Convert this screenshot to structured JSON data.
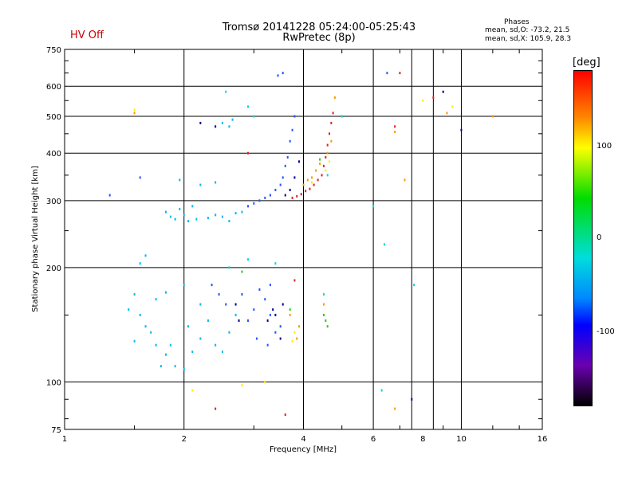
{
  "status": {
    "hv": "HV Off"
  },
  "header": {
    "title": "Tromsø 20141228 05:24:00-05:25:43",
    "subtitle": "RwPretec (8p)"
  },
  "phase_stats": {
    "label": "Phases",
    "o_line": "mean, sd,O: -73.2, 21.5",
    "x_line": "mean, sd,X: 105.9, 28.3"
  },
  "colorbar": {
    "unit": "[deg]",
    "ticks": [
      "100",
      "0",
      "-100"
    ],
    "colors": [
      "#ff0000",
      "#ff8800",
      "#ffff00",
      "#00dd00",
      "#00dddd",
      "#0088ff",
      "#0000ff",
      "#6a00b0",
      "#000000"
    ]
  },
  "chart_data": {
    "type": "scatter",
    "title": "Tromsø 20141228 05:24:00-05:25:43",
    "subtitle": "RwPretec (8p)",
    "xlabel": "Frequency [MHz]",
    "ylabel": "Stationary phase Virtual Height [km]",
    "xscale": "log",
    "yscale": "log",
    "xlim": [
      1,
      16
    ],
    "ylim": [
      75,
      750
    ],
    "xticks": [
      "1",
      "2",
      "4",
      "6",
      "8",
      "10",
      "16"
    ],
    "yticks": [
      "75",
      "100",
      "200",
      "300",
      "400",
      "500",
      "600",
      "750"
    ],
    "xgrid": [
      2,
      4,
      6,
      7.5,
      8.5,
      10
    ],
    "ygrid": [
      100,
      200,
      300,
      400,
      500,
      600
    ],
    "colorscale": "phase (deg)",
    "series": [
      {
        "color": "#00bbee",
        "points": [
          [
            1.8,
            280
          ],
          [
            1.85,
            272
          ],
          [
            1.9,
            268
          ],
          [
            1.95,
            285
          ],
          [
            2.0,
            275
          ],
          [
            2.05,
            265
          ],
          [
            2.1,
            290
          ],
          [
            2.15,
            268
          ],
          [
            2.3,
            270
          ],
          [
            2.4,
            275
          ],
          [
            2.5,
            272
          ],
          [
            2.6,
            265
          ],
          [
            2.7,
            278
          ],
          [
            2.8,
            280
          ],
          [
            1.55,
            205
          ],
          [
            1.6,
            215
          ],
          [
            1.5,
            170
          ],
          [
            1.55,
            150
          ],
          [
            1.6,
            140
          ],
          [
            1.65,
            135
          ],
          [
            1.7,
            125
          ],
          [
            1.8,
            118
          ],
          [
            1.9,
            110
          ],
          [
            2.0,
            108
          ],
          [
            2.1,
            120
          ],
          [
            2.2,
            130
          ],
          [
            2.3,
            145
          ],
          [
            2.4,
            125
          ],
          [
            2.5,
            120
          ],
          [
            2.6,
            135
          ],
          [
            2.7,
            150
          ],
          [
            1.45,
            155
          ],
          [
            1.5,
            128
          ],
          [
            1.7,
            165
          ],
          [
            1.8,
            172
          ],
          [
            2.0,
            180
          ],
          [
            2.2,
            160
          ],
          [
            2.6,
            470
          ],
          [
            2.65,
            490
          ],
          [
            2.5,
            480
          ],
          [
            1.95,
            340
          ],
          [
            2.2,
            330
          ],
          [
            2.4,
            335
          ],
          [
            1.75,
            110
          ],
          [
            1.85,
            125
          ],
          [
            2.05,
            140
          ]
        ]
      },
      {
        "color": "#2255ff",
        "points": [
          [
            2.9,
            290
          ],
          [
            3.0,
            295
          ],
          [
            3.1,
            300
          ],
          [
            3.2,
            305
          ],
          [
            3.3,
            310
          ],
          [
            3.4,
            320
          ],
          [
            3.5,
            330
          ],
          [
            3.55,
            345
          ],
          [
            3.6,
            370
          ],
          [
            3.65,
            390
          ],
          [
            3.7,
            430
          ],
          [
            3.75,
            460
          ],
          [
            3.8,
            500
          ],
          [
            3.3,
            150
          ],
          [
            3.4,
            135
          ],
          [
            3.5,
            140
          ],
          [
            3.2,
            165
          ],
          [
            3.1,
            175
          ],
          [
            3.3,
            180
          ],
          [
            3.0,
            155
          ],
          [
            2.9,
            145
          ],
          [
            3.45,
            640
          ],
          [
            3.55,
            650
          ],
          [
            1.3,
            310
          ],
          [
            1.55,
            345
          ],
          [
            6.5,
            650
          ],
          [
            2.35,
            180
          ],
          [
            2.45,
            170
          ],
          [
            2.55,
            160
          ],
          [
            2.8,
            170
          ],
          [
            3.05,
            130
          ],
          [
            3.25,
            125
          ]
        ]
      },
      {
        "color": "#000099",
        "points": [
          [
            3.6,
            310
          ],
          [
            3.7,
            320
          ],
          [
            3.8,
            345
          ],
          [
            3.9,
            380
          ],
          [
            3.4,
            150
          ],
          [
            3.55,
            160
          ],
          [
            3.25,
            145
          ],
          [
            2.7,
            160
          ],
          [
            2.75,
            145
          ],
          [
            3.35,
            155
          ],
          [
            3.5,
            130
          ],
          [
            10.0,
            460
          ],
          [
            9.0,
            580
          ],
          [
            7.5,
            90
          ],
          [
            2.2,
            480
          ],
          [
            2.4,
            470
          ]
        ]
      },
      {
        "color": "#dd2222",
        "points": [
          [
            3.75,
            305
          ],
          [
            3.85,
            308
          ],
          [
            3.95,
            312
          ],
          [
            4.05,
            318
          ],
          [
            4.15,
            322
          ],
          [
            4.25,
            330
          ],
          [
            4.35,
            340
          ],
          [
            4.45,
            350
          ],
          [
            4.5,
            370
          ],
          [
            4.55,
            390
          ],
          [
            4.6,
            420
          ],
          [
            4.65,
            450
          ],
          [
            4.7,
            480
          ],
          [
            4.75,
            510
          ],
          [
            2.9,
            400
          ],
          [
            2.4,
            85
          ],
          [
            3.6,
            82
          ],
          [
            6.8,
            470
          ],
          [
            8.5,
            560
          ],
          [
            3.8,
            185
          ],
          [
            7.0,
            650
          ]
        ]
      },
      {
        "color": "#ff9900",
        "points": [
          [
            4.0,
            330
          ],
          [
            4.1,
            340
          ],
          [
            4.2,
            345
          ],
          [
            4.3,
            360
          ],
          [
            4.4,
            375
          ],
          [
            4.6,
            400
          ],
          [
            4.7,
            430
          ],
          [
            4.8,
            560
          ],
          [
            3.9,
            140
          ],
          [
            3.85,
            130
          ],
          [
            3.7,
            150
          ],
          [
            4.5,
            160
          ],
          [
            6.8,
            455
          ],
          [
            6.8,
            85
          ],
          [
            7.2,
            340
          ],
          [
            1.5,
            510
          ],
          [
            9.2,
            510
          ],
          [
            12.0,
            500
          ]
        ]
      },
      {
        "color": "#ffee00",
        "points": [
          [
            4.55,
            360
          ],
          [
            4.65,
            380
          ],
          [
            4.2,
            335
          ],
          [
            3.8,
            135
          ],
          [
            3.75,
            128
          ],
          [
            1.5,
            520
          ],
          [
            8.0,
            550
          ],
          [
            9.5,
            530
          ],
          [
            2.1,
            95
          ],
          [
            2.8,
            98
          ],
          [
            3.2,
            100
          ]
        ]
      },
      {
        "color": "#22cc22",
        "points": [
          [
            4.5,
            150
          ],
          [
            4.55,
            145
          ],
          [
            4.6,
            140
          ],
          [
            4.4,
            385
          ],
          [
            2.8,
            195
          ],
          [
            3.7,
            155
          ]
        ]
      },
      {
        "color": "#00ddcc",
        "points": [
          [
            2.6,
            200
          ],
          [
            2.9,
            210
          ],
          [
            3.4,
            205
          ],
          [
            4.5,
            170
          ],
          [
            4.6,
            350
          ],
          [
            5.0,
            500
          ],
          [
            6.0,
            290
          ],
          [
            6.4,
            230
          ],
          [
            7.6,
            180
          ],
          [
            6.3,
            95
          ],
          [
            2.55,
            580
          ],
          [
            2.9,
            530
          ],
          [
            3.0,
            500
          ]
        ]
      }
    ]
  }
}
